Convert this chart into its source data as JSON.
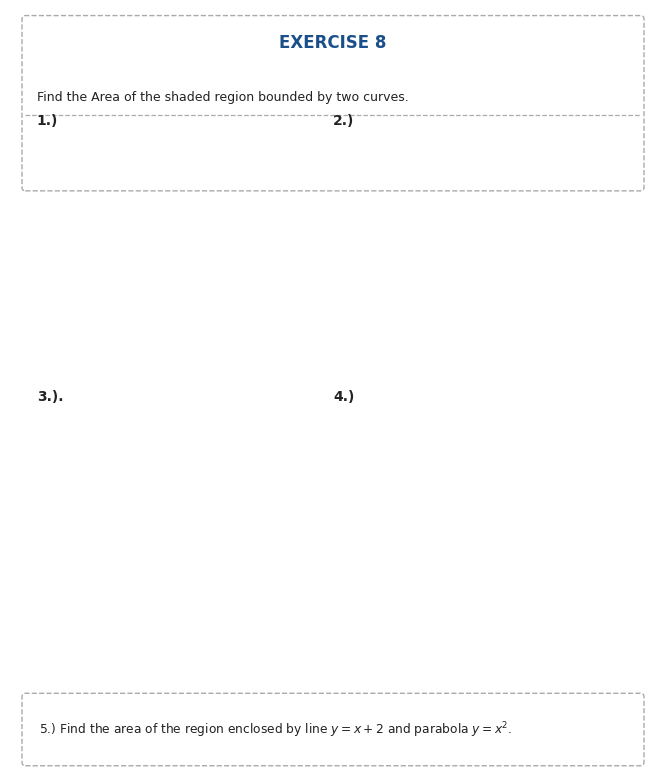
{
  "title": "EXERCISE 8",
  "subtitle": "Find the Area of the shaded region bounded by two curves.",
  "bg_outer": "#c8dff0",
  "bg_white": "#ffffff",
  "border_color": "#5b9fd4",
  "dash_color": "#aaaaaa",
  "title_color": "#1a4f8a",
  "text_color": "#222222",
  "fill_color": "#b8dff0",
  "curve_cyan": "#2aadcc",
  "curve_magenta": "#cc0077",
  "curve_pink": "#cc3366",
  "axis_color": "#444444",
  "label1": "1.)",
  "label2": "2.)",
  "label3": "3.).",
  "label4": "4.)"
}
